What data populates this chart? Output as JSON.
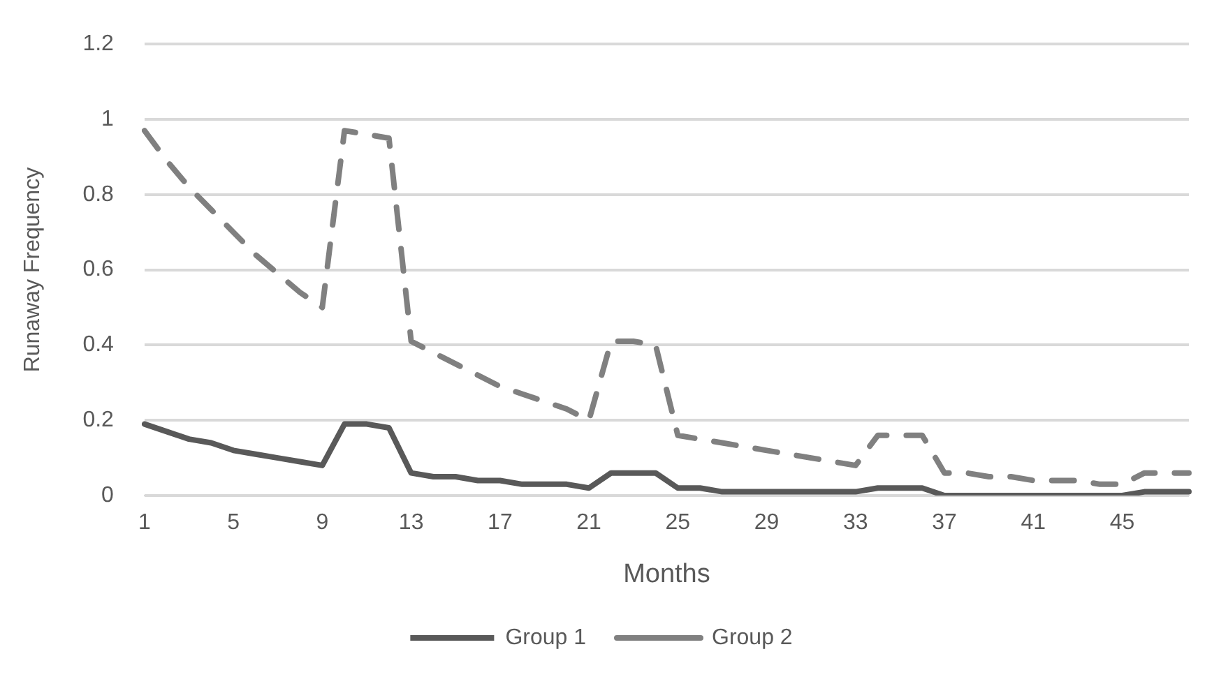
{
  "chart_data": {
    "type": "line",
    "xlabel": "Months",
    "ylabel": "Runaway Frequency",
    "categories": [
      "1",
      null,
      null,
      null,
      "5",
      null,
      null,
      null,
      "9",
      null,
      null,
      null,
      "13",
      null,
      null,
      null,
      "17",
      null,
      null,
      null,
      "21",
      null,
      null,
      null,
      "25",
      null,
      null,
      null,
      "29",
      null,
      null,
      null,
      "33",
      null,
      null,
      null,
      "37",
      null,
      null,
      null,
      "41",
      null,
      null,
      null,
      "45",
      null,
      null,
      null
    ],
    "series": [
      {
        "name": "Group 1",
        "color": "#595959",
        "line_style": "solid",
        "values": [
          0.19,
          0.17,
          0.15,
          0.14,
          0.12,
          0.11,
          0.1,
          0.09,
          0.08,
          0.19,
          0.19,
          0.18,
          0.06,
          0.05,
          0.05,
          0.04,
          0.04,
          0.03,
          0.03,
          0.03,
          0.02,
          0.06,
          0.06,
          0.06,
          0.02,
          0.02,
          0.01,
          0.01,
          0.01,
          0.01,
          0.01,
          0.01,
          0.01,
          0.02,
          0.02,
          0.02,
          0,
          0,
          0,
          0,
          0,
          0,
          0,
          0,
          0,
          0.01,
          0.01,
          0.01
        ]
      },
      {
        "name": "Group 2",
        "color": "#808080",
        "line_style": "dashed",
        "values": [
          0.97,
          0.89,
          0.82,
          0.76,
          0.7,
          0.64,
          0.59,
          0.54,
          0.5,
          0.97,
          0.96,
          0.95,
          0.41,
          0.38,
          0.35,
          0.32,
          0.29,
          0.27,
          0.25,
          0.23,
          0.2,
          0.41,
          0.41,
          0.4,
          0.16,
          0.15,
          0.14,
          0.13,
          0.12,
          0.11,
          0.1,
          0.09,
          0.08,
          0.16,
          0.16,
          0.16,
          0.06,
          0.06,
          0.05,
          0.05,
          0.04,
          0.04,
          0.04,
          0.03,
          0.03,
          0.06,
          0.06,
          0.06
        ]
      }
    ],
    "ylim": [
      0,
      1.2
    ],
    "yticks": [
      0,
      0.2,
      0.4,
      0.6,
      0.8,
      1,
      1.2
    ],
    "grid": "y",
    "legend": "bottom",
    "marker": "none"
  }
}
